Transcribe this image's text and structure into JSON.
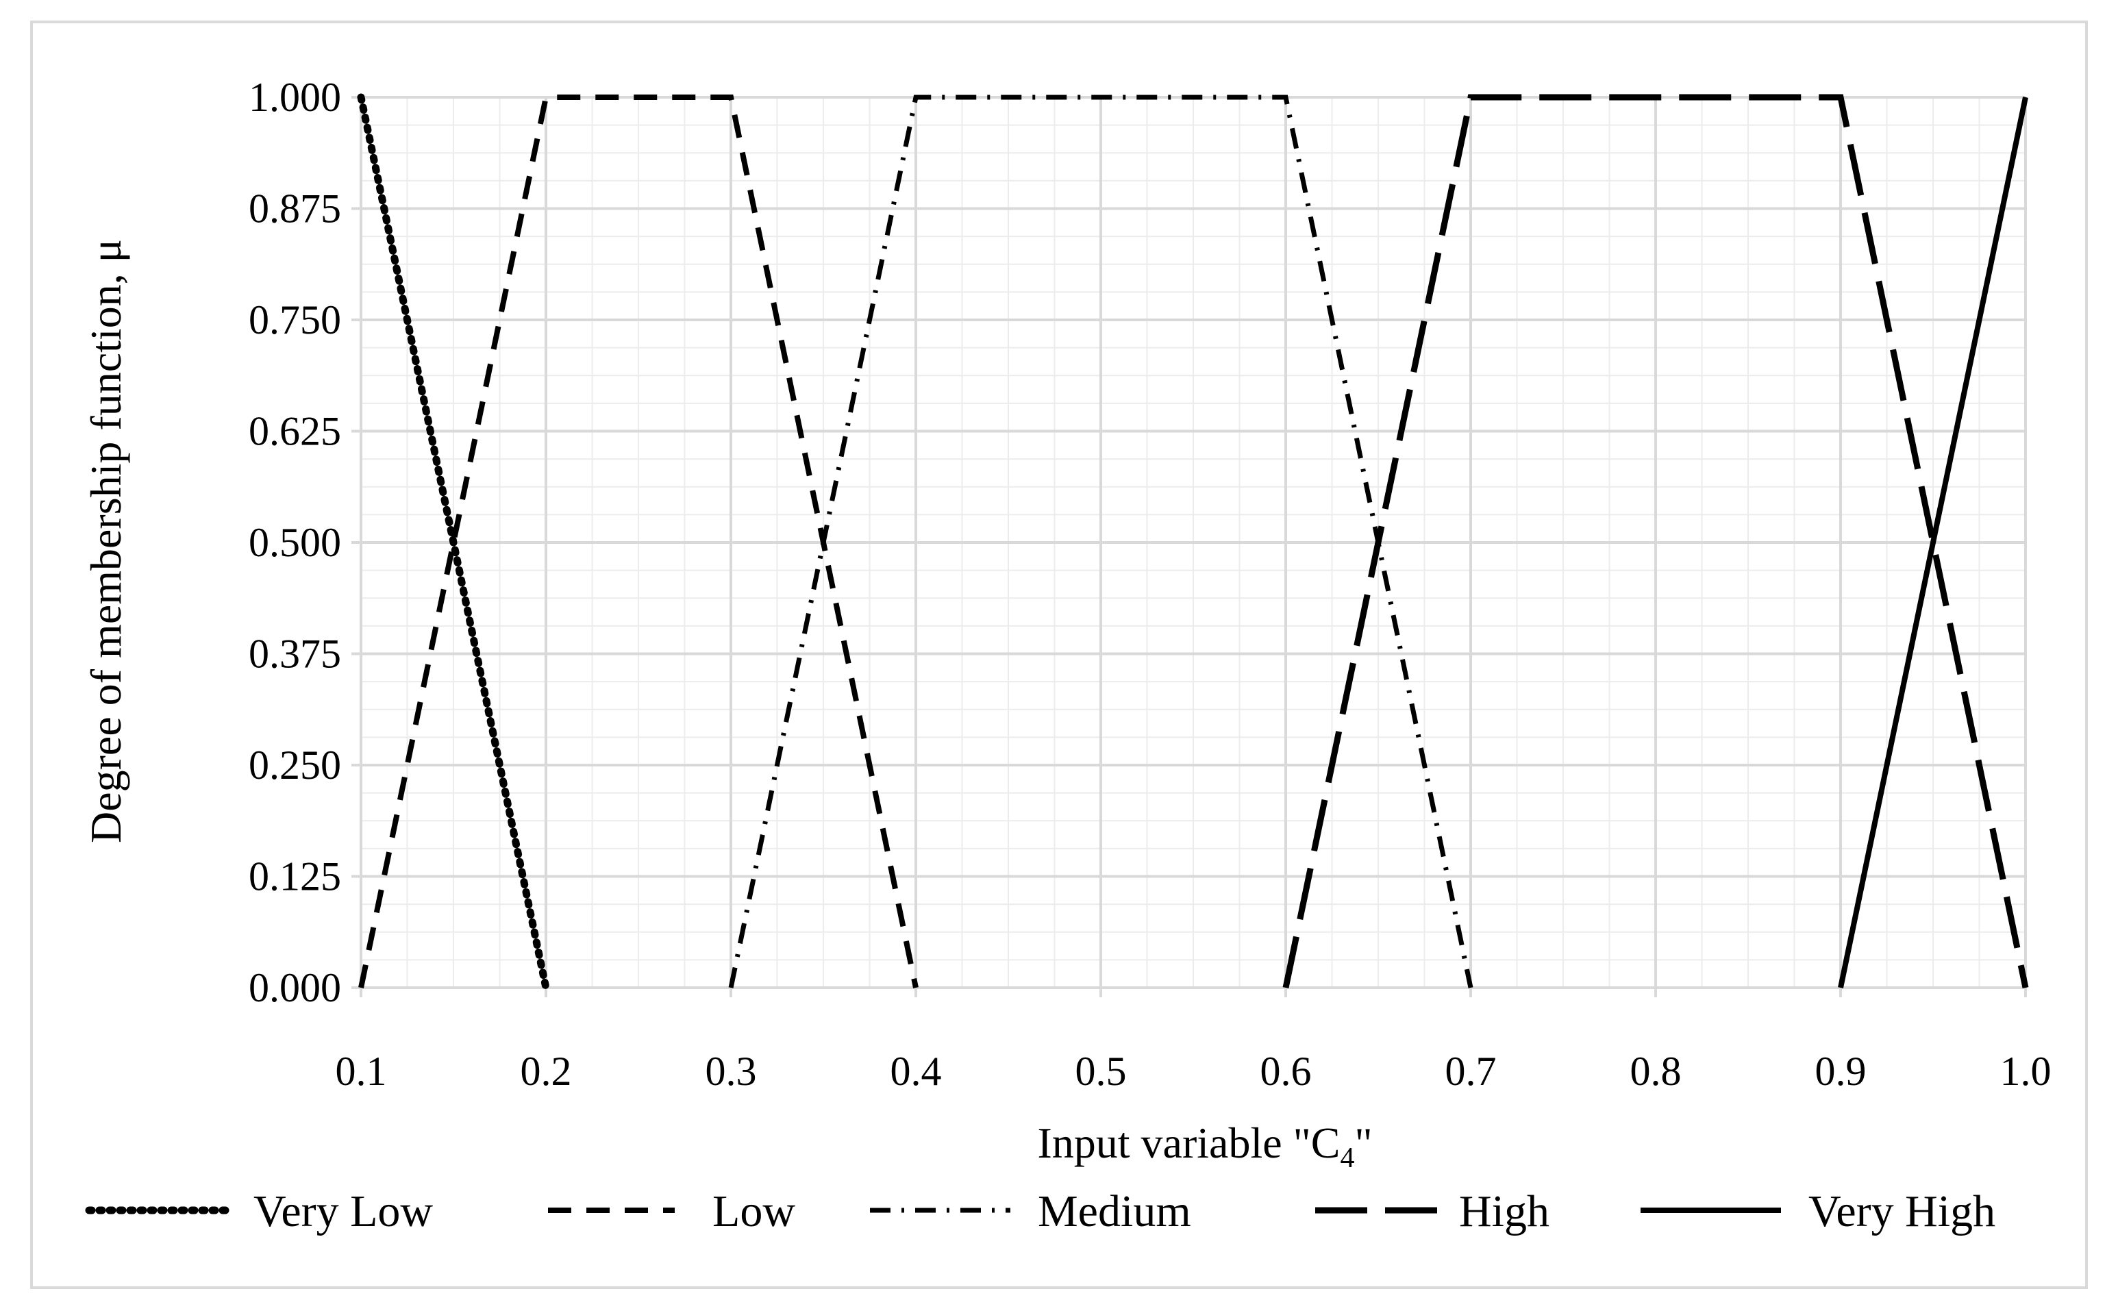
{
  "chart_data": {
    "type": "line",
    "xlabel_main": "Input variable \"C",
    "xlabel_sub": "4",
    "xlabel_end": "\"",
    "ylabel": "Degree of membership function, μ",
    "xlim": [
      0.1,
      1.0
    ],
    "ylim": [
      0,
      1
    ],
    "x_ticks": [
      "0.1",
      "0.2",
      "0.3",
      "0.4",
      "0.5",
      "0.6",
      "0.7",
      "0.8",
      "0.9",
      "1.0"
    ],
    "y_ticks": [
      "0.000",
      "0.125",
      "0.250",
      "0.375",
      "0.500",
      "0.625",
      "0.750",
      "0.875",
      "1.000"
    ],
    "grid": true,
    "legend_position": "bottom",
    "series": [
      {
        "name": "Very Low",
        "style": "dotted",
        "points": [
          [
            0.1,
            1.0
          ],
          [
            0.2,
            0.0
          ]
        ]
      },
      {
        "name": "Low",
        "style": "dashed",
        "points": [
          [
            0.1,
            0.0
          ],
          [
            0.2,
            1.0
          ],
          [
            0.3,
            1.0
          ],
          [
            0.4,
            0.0
          ]
        ]
      },
      {
        "name": "Medium",
        "style": "dash-dot",
        "points": [
          [
            0.3,
            0.0
          ],
          [
            0.4,
            1.0
          ],
          [
            0.6,
            1.0
          ],
          [
            0.7,
            0.0
          ]
        ]
      },
      {
        "name": "High",
        "style": "long-dash",
        "points": [
          [
            0.6,
            0.0
          ],
          [
            0.7,
            1.0
          ],
          [
            0.9,
            1.0
          ],
          [
            1.0,
            0.0
          ]
        ]
      },
      {
        "name": "Very High",
        "style": "solid",
        "points": [
          [
            0.9,
            0.0
          ],
          [
            1.0,
            1.0
          ]
        ]
      }
    ],
    "colors": {
      "line": "#000000",
      "grid_major": "#d9d9d9",
      "grid_minor": "#ececec",
      "frame": "#d9d9d9"
    }
  }
}
